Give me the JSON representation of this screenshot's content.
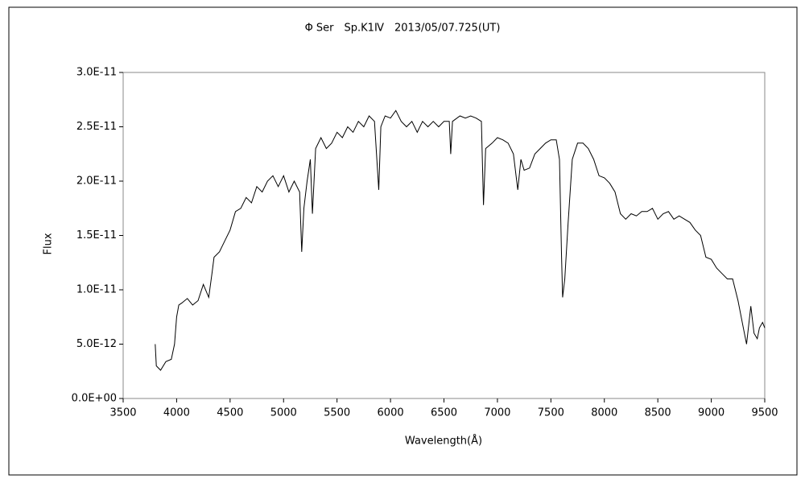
{
  "chart_data": {
    "type": "line",
    "title": "Φ Ser　Sp.K1Ⅳ　2013/05/07.725(UT)",
    "x_label": "Wavelength(Å)",
    "y_label": "Flux",
    "color": "#000000",
    "x": [
      3800,
      3810,
      3850,
      3900,
      3950,
      3980,
      4000,
      4020,
      4050,
      4100,
      4150,
      4200,
      4250,
      4300,
      4330,
      4350,
      4400,
      4450,
      4500,
      4550,
      4600,
      4650,
      4700,
      4750,
      4800,
      4850,
      4900,
      4950,
      5000,
      5050,
      5100,
      5150,
      5170,
      5190,
      5220,
      5250,
      5270,
      5300,
      5350,
      5400,
      5450,
      5500,
      5550,
      5600,
      5650,
      5700,
      5750,
      5800,
      5850,
      5890,
      5910,
      5950,
      6000,
      6050,
      6100,
      6150,
      6200,
      6250,
      6300,
      6350,
      6400,
      6450,
      6500,
      6550,
      6563,
      6580,
      6650,
      6700,
      6750,
      6800,
      6850,
      6870,
      6890,
      6950,
      7000,
      7050,
      7100,
      7150,
      7190,
      7220,
      7250,
      7300,
      7350,
      7400,
      7450,
      7500,
      7550,
      7580,
      7600,
      7610,
      7630,
      7660,
      7700,
      7750,
      7800,
      7850,
      7900,
      7950,
      8000,
      8050,
      8100,
      8150,
      8200,
      8250,
      8300,
      8350,
      8400,
      8450,
      8500,
      8550,
      8600,
      8650,
      8700,
      8750,
      8800,
      8850,
      8900,
      8950,
      9000,
      9050,
      9100,
      9150,
      9200,
      9250,
      9300,
      9330,
      9370,
      9400,
      9430,
      9450,
      9480,
      9500
    ],
    "values": [
      5e-12,
      3e-12,
      2.6e-12,
      3.4e-12,
      3.6e-12,
      5e-12,
      7.5e-12,
      8.6e-12,
      8.8e-12,
      9.2e-12,
      8.6e-12,
      9e-12,
      1.05e-11,
      9.3e-12,
      1.15e-11,
      1.3e-11,
      1.35e-11,
      1.45e-11,
      1.55e-11,
      1.72e-11,
      1.75e-11,
      1.85e-11,
      1.8e-11,
      1.95e-11,
      1.9e-11,
      2e-11,
      2.05e-11,
      1.95e-11,
      2.05e-11,
      1.9e-11,
      2e-11,
      1.9e-11,
      1.35e-11,
      1.75e-11,
      2e-11,
      2.2e-11,
      1.7e-11,
      2.3e-11,
      2.4e-11,
      2.3e-11,
      2.35e-11,
      2.45e-11,
      2.4e-11,
      2.5e-11,
      2.45e-11,
      2.55e-11,
      2.5e-11,
      2.6e-11,
      2.55e-11,
      1.92e-11,
      2.5e-11,
      2.6e-11,
      2.58e-11,
      2.65e-11,
      2.55e-11,
      2.5e-11,
      2.55e-11,
      2.45e-11,
      2.55e-11,
      2.5e-11,
      2.55e-11,
      2.5e-11,
      2.55e-11,
      2.55e-11,
      2.25e-11,
      2.55e-11,
      2.6e-11,
      2.58e-11,
      2.6e-11,
      2.58e-11,
      2.55e-11,
      1.78e-11,
      2.3e-11,
      2.35e-11,
      2.4e-11,
      2.38e-11,
      2.35e-11,
      2.25e-11,
      1.92e-11,
      2.2e-11,
      2.1e-11,
      2.12e-11,
      2.25e-11,
      2.3e-11,
      2.35e-11,
      2.38e-11,
      2.38e-11,
      2.2e-11,
      1.3e-11,
      9.3e-12,
      1.1e-11,
      1.6e-11,
      2.2e-11,
      2.35e-11,
      2.35e-11,
      2.3e-11,
      2.2e-11,
      2.05e-11,
      2.03e-11,
      1.98e-11,
      1.9e-11,
      1.7e-11,
      1.65e-11,
      1.7e-11,
      1.68e-11,
      1.72e-11,
      1.72e-11,
      1.75e-11,
      1.65e-11,
      1.7e-11,
      1.72e-11,
      1.65e-11,
      1.68e-11,
      1.65e-11,
      1.62e-11,
      1.55e-11,
      1.5e-11,
      1.3e-11,
      1.28e-11,
      1.2e-11,
      1.15e-11,
      1.1e-11,
      1.1e-11,
      9e-12,
      6.5e-12,
      5e-12,
      8.5e-12,
      6e-12,
      5.5e-12,
      6.5e-12,
      7e-12,
      6.5e-12
    ],
    "xlim": [
      3500,
      9500
    ],
    "xticks": [
      3500,
      4000,
      4500,
      5000,
      5500,
      6000,
      6500,
      7000,
      7500,
      8000,
      8500,
      9000,
      9500
    ],
    "ylim": [
      0,
      3e-11
    ],
    "yticks": [
      {
        "value": 0,
        "label": "0.0E+00"
      },
      {
        "value": 5e-12,
        "label": "5.0E-12"
      },
      {
        "value": 1e-11,
        "label": "1.0E-11"
      },
      {
        "value": 1.5e-11,
        "label": "1.5E-11"
      },
      {
        "value": 2e-11,
        "label": "2.0E-11"
      },
      {
        "value": 2.5e-11,
        "label": "2.5E-11"
      },
      {
        "value": 3e-11,
        "label": "3.0E-11"
      }
    ]
  }
}
